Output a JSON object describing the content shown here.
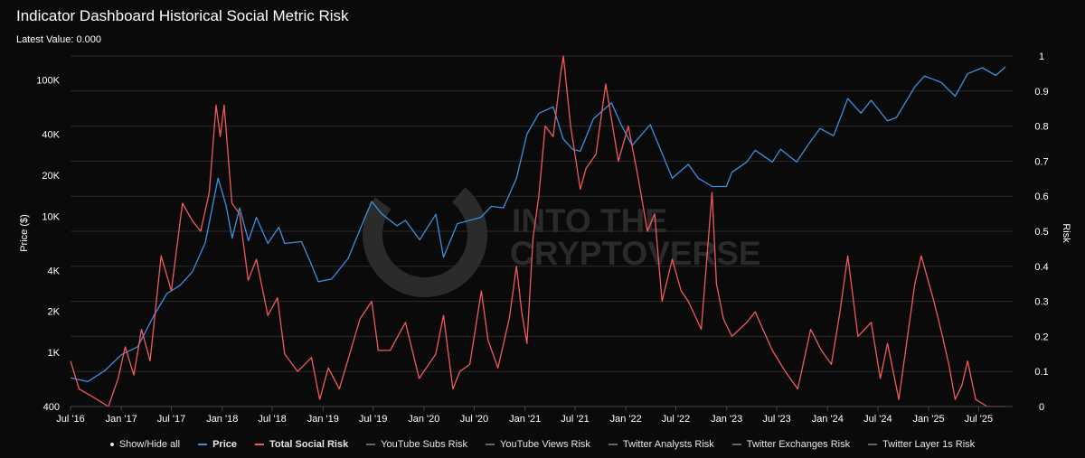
{
  "header": {
    "title": "Indicator Dashboard Historical Social Metric Risk",
    "latest_value": "Latest Value: 0.000"
  },
  "watermark": {
    "line1": "INTO THE",
    "line2": "CRYPTOVERSE"
  },
  "legend": {
    "show_hide": "Show/Hide all",
    "items": [
      {
        "label": "Price",
        "color": "#3d8fe0",
        "active": true
      },
      {
        "label": "Total Social Risk",
        "color": "#f05a5a",
        "active": true
      },
      {
        "label": "YouTube Subs Risk",
        "color": "#666666",
        "active": false
      },
      {
        "label": "YouTube Views Risk",
        "color": "#666666",
        "active": false
      },
      {
        "label": "Twitter Analysts Risk",
        "color": "#666666",
        "active": false
      },
      {
        "label": "Twitter Exchanges Risk",
        "color": "#666666",
        "active": false
      },
      {
        "label": "Twitter Layer 1s Risk",
        "color": "#666666",
        "active": false
      }
    ]
  },
  "chart_data": {
    "type": "line",
    "title": "Indicator Dashboard Historical Social Metric Risk",
    "subtitle": "Latest Value: 0.000",
    "xlabel": "",
    "x_ticks": [
      "Jul '16",
      "Jan '17",
      "Jul '17",
      "Jan '18",
      "Jul '18",
      "Jan '19",
      "Jul '19",
      "Jan '20",
      "Jul '20",
      "Jan '21",
      "Jul '21",
      "Jan '22",
      "Jul '22",
      "Jan '23",
      "Jul '23",
      "Jan '24",
      "Jul '24",
      "Jan '25",
      "Jul '25"
    ],
    "y_left": {
      "label": "Price ($)",
      "scale": "log",
      "range": [
        400,
        150000
      ],
      "ticks": [
        {
          "value": 400,
          "label": "400"
        },
        {
          "value": 1000,
          "label": "1K"
        },
        {
          "value": 2000,
          "label": "2K"
        },
        {
          "value": 4000,
          "label": "4K"
        },
        {
          "value": 10000,
          "label": "10K"
        },
        {
          "value": 20000,
          "label": "20K"
        },
        {
          "value": 40000,
          "label": "40K"
        },
        {
          "value": 100000,
          "label": "100K"
        }
      ]
    },
    "y_right": {
      "label": "Risk",
      "range": [
        0,
        1
      ],
      "ticks": [
        {
          "value": 0,
          "label": "0"
        },
        {
          "value": 0.1,
          "label": "0.1"
        },
        {
          "value": 0.2,
          "label": "0.2"
        },
        {
          "value": 0.3,
          "label": "0.3"
        },
        {
          "value": 0.4,
          "label": "0.4"
        },
        {
          "value": 0.5,
          "label": "0.5"
        },
        {
          "value": 0.6,
          "label": "0.6"
        },
        {
          "value": 0.7,
          "label": "0.7"
        },
        {
          "value": 0.8,
          "label": "0.8"
        },
        {
          "value": 0.9,
          "label": "0.9"
        },
        {
          "value": 1,
          "label": "1"
        }
      ]
    },
    "grid": true,
    "series": [
      {
        "name": "Price",
        "axis": "left",
        "color": "#3d8fe0",
        "points": [
          [
            "2016-07-01",
            650
          ],
          [
            "2016-09-01",
            610
          ],
          [
            "2016-11-01",
            730
          ],
          [
            "2017-01-01",
            960
          ],
          [
            "2017-03-01",
            1100
          ],
          [
            "2017-05-01",
            1900
          ],
          [
            "2017-06-15",
            2700
          ],
          [
            "2017-08-01",
            3100
          ],
          [
            "2017-09-15",
            3900
          ],
          [
            "2017-11-01",
            6400
          ],
          [
            "2017-12-17",
            19000
          ],
          [
            "2018-01-15",
            12000
          ],
          [
            "2018-02-06",
            6900
          ],
          [
            "2018-03-05",
            11500
          ],
          [
            "2018-04-06",
            6600
          ],
          [
            "2018-05-05",
            9800
          ],
          [
            "2018-06-15",
            6300
          ],
          [
            "2018-07-25",
            8300
          ],
          [
            "2018-08-15",
            6300
          ],
          [
            "2018-10-15",
            6500
          ],
          [
            "2018-11-20",
            4400
          ],
          [
            "2018-12-15",
            3300
          ],
          [
            "2019-02-01",
            3450
          ],
          [
            "2019-04-02",
            4900
          ],
          [
            "2019-05-15",
            8000
          ],
          [
            "2019-06-26",
            12800
          ],
          [
            "2019-08-01",
            10400
          ],
          [
            "2019-09-25",
            8500
          ],
          [
            "2019-10-26",
            9300
          ],
          [
            "2019-12-17",
            6700
          ],
          [
            "2020-02-13",
            10300
          ],
          [
            "2020-03-12",
            5000
          ],
          [
            "2020-05-01",
            8800
          ],
          [
            "2020-07-25",
            9800
          ],
          [
            "2020-09-01",
            11800
          ],
          [
            "2020-10-15",
            11500
          ],
          [
            "2020-12-01",
            19000
          ],
          [
            "2021-01-08",
            40000
          ],
          [
            "2021-02-21",
            57000
          ],
          [
            "2021-04-13",
            63500
          ],
          [
            "2021-05-19",
            37000
          ],
          [
            "2021-06-22",
            31000
          ],
          [
            "2021-07-20",
            30000
          ],
          [
            "2021-09-06",
            52000
          ],
          [
            "2021-11-10",
            68000
          ],
          [
            "2021-12-15",
            47000
          ],
          [
            "2022-01-24",
            33000
          ],
          [
            "2022-03-30",
            47000
          ],
          [
            "2022-05-12",
            29000
          ],
          [
            "2022-06-18",
            19000
          ],
          [
            "2022-08-15",
            24000
          ],
          [
            "2022-09-20",
            19000
          ],
          [
            "2022-11-10",
            16500
          ],
          [
            "2022-12-31",
            16500
          ],
          [
            "2023-01-20",
            21000
          ],
          [
            "2023-03-15",
            25000
          ],
          [
            "2023-04-14",
            30500
          ],
          [
            "2023-06-15",
            25000
          ],
          [
            "2023-07-15",
            31000
          ],
          [
            "2023-09-11",
            25000
          ],
          [
            "2023-10-25",
            34000
          ],
          [
            "2023-12-05",
            44000
          ],
          [
            "2024-01-23",
            39000
          ],
          [
            "2024-03-14",
            73000
          ],
          [
            "2024-05-01",
            57000
          ],
          [
            "2024-06-07",
            71000
          ],
          [
            "2024-08-05",
            50000
          ],
          [
            "2024-09-06",
            53000
          ],
          [
            "2024-11-12",
            89000
          ],
          [
            "2024-12-17",
            107000
          ],
          [
            "2025-02-15",
            96000
          ],
          [
            "2025-04-07",
            76000
          ],
          [
            "2025-05-22",
            111000
          ],
          [
            "2025-07-14",
            123000
          ],
          [
            "2025-09-01",
            108000
          ],
          [
            "2025-10-06",
            125000
          ]
        ]
      },
      {
        "name": "Total Social Risk",
        "axis": "right",
        "color": "#f05a5a",
        "points": [
          [
            "2016-07-01",
            0.13
          ],
          [
            "2016-08-01",
            0.05
          ],
          [
            "2016-09-15",
            0.03
          ],
          [
            "2016-11-15",
            0.0
          ],
          [
            "2016-12-20",
            0.08
          ],
          [
            "2017-01-15",
            0.17
          ],
          [
            "2017-02-15",
            0.09
          ],
          [
            "2017-03-15",
            0.22
          ],
          [
            "2017-04-15",
            0.13
          ],
          [
            "2017-05-25",
            0.43
          ],
          [
            "2017-07-01",
            0.33
          ],
          [
            "2017-08-10",
            0.58
          ],
          [
            "2017-09-15",
            0.53
          ],
          [
            "2017-10-15",
            0.5
          ],
          [
            "2017-11-15",
            0.61
          ],
          [
            "2017-12-10",
            0.86
          ],
          [
            "2017-12-25",
            0.77
          ],
          [
            "2018-01-08",
            0.86
          ],
          [
            "2018-02-05",
            0.58
          ],
          [
            "2018-03-05",
            0.55
          ],
          [
            "2018-04-05",
            0.36
          ],
          [
            "2018-05-05",
            0.42
          ],
          [
            "2018-06-15",
            0.26
          ],
          [
            "2018-07-20",
            0.31
          ],
          [
            "2018-08-15",
            0.15
          ],
          [
            "2018-10-01",
            0.1
          ],
          [
            "2018-11-20",
            0.14
          ],
          [
            "2018-12-20",
            0.02
          ],
          [
            "2019-01-20",
            0.11
          ],
          [
            "2019-03-01",
            0.05
          ],
          [
            "2019-05-15",
            0.25
          ],
          [
            "2019-06-26",
            0.3
          ],
          [
            "2019-07-20",
            0.16
          ],
          [
            "2019-09-01",
            0.16
          ],
          [
            "2019-10-26",
            0.24
          ],
          [
            "2019-12-15",
            0.08
          ],
          [
            "2020-02-13",
            0.15
          ],
          [
            "2020-03-12",
            0.26
          ],
          [
            "2020-04-15",
            0.05
          ],
          [
            "2020-05-10",
            0.1
          ],
          [
            "2020-06-15",
            0.12
          ],
          [
            "2020-07-27",
            0.33
          ],
          [
            "2020-08-20",
            0.19
          ],
          [
            "2020-09-25",
            0.11
          ],
          [
            "2020-11-05",
            0.25
          ],
          [
            "2020-12-01",
            0.4
          ],
          [
            "2020-12-20",
            0.27
          ],
          [
            "2021-01-08",
            0.18
          ],
          [
            "2021-01-30",
            0.48
          ],
          [
            "2021-02-20",
            0.6
          ],
          [
            "2021-03-15",
            0.8
          ],
          [
            "2021-04-13",
            0.77
          ],
          [
            "2021-05-10",
            0.95
          ],
          [
            "2021-05-20",
            1.0
          ],
          [
            "2021-06-15",
            0.8
          ],
          [
            "2021-07-20",
            0.62
          ],
          [
            "2021-08-10",
            0.68
          ],
          [
            "2021-09-15",
            0.72
          ],
          [
            "2021-10-20",
            0.92
          ],
          [
            "2021-11-10",
            0.82
          ],
          [
            "2021-12-05",
            0.7
          ],
          [
            "2022-01-10",
            0.8
          ],
          [
            "2022-02-15",
            0.65
          ],
          [
            "2022-03-20",
            0.5
          ],
          [
            "2022-04-15",
            0.55
          ],
          [
            "2022-05-12",
            0.3
          ],
          [
            "2022-06-18",
            0.42
          ],
          [
            "2022-07-20",
            0.33
          ],
          [
            "2022-08-15",
            0.3
          ],
          [
            "2022-10-01",
            0.22
          ],
          [
            "2022-11-09",
            0.61
          ],
          [
            "2022-11-25",
            0.35
          ],
          [
            "2022-12-20",
            0.25
          ],
          [
            "2023-01-20",
            0.2
          ],
          [
            "2023-03-15",
            0.24
          ],
          [
            "2023-04-14",
            0.27
          ],
          [
            "2023-06-15",
            0.16
          ],
          [
            "2023-08-01",
            0.1
          ],
          [
            "2023-09-15",
            0.05
          ],
          [
            "2023-11-01",
            0.22
          ],
          [
            "2023-12-10",
            0.16
          ],
          [
            "2024-01-15",
            0.12
          ],
          [
            "2024-02-15",
            0.27
          ],
          [
            "2024-03-14",
            0.43
          ],
          [
            "2024-04-20",
            0.2
          ],
          [
            "2024-06-07",
            0.24
          ],
          [
            "2024-07-10",
            0.08
          ],
          [
            "2024-08-05",
            0.18
          ],
          [
            "2024-09-15",
            0.02
          ],
          [
            "2024-11-12",
            0.35
          ],
          [
            "2024-12-05",
            0.43
          ],
          [
            "2025-01-20",
            0.3
          ],
          [
            "2025-02-20",
            0.2
          ],
          [
            "2025-03-15",
            0.12
          ],
          [
            "2025-04-07",
            0.02
          ],
          [
            "2025-05-01",
            0.06
          ],
          [
            "2025-05-22",
            0.13
          ],
          [
            "2025-06-20",
            0.02
          ],
          [
            "2025-08-01",
            0.0
          ],
          [
            "2025-10-06",
            0.0
          ]
        ]
      }
    ]
  }
}
